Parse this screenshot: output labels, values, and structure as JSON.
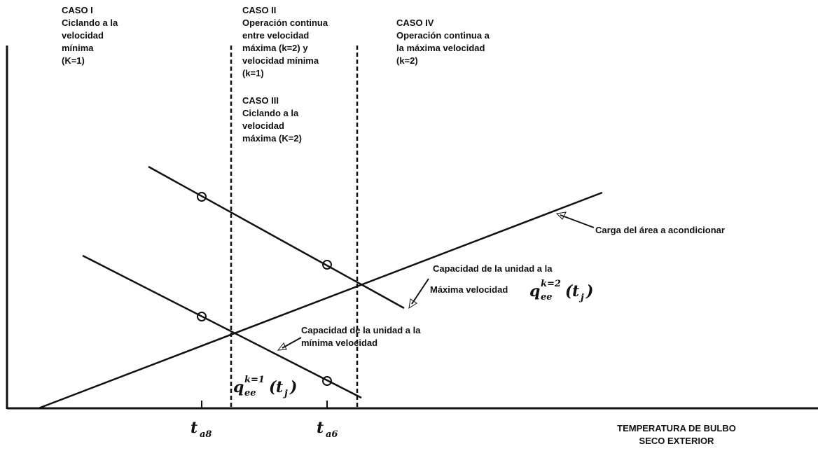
{
  "cases": [
    {
      "title": "CASO I",
      "lines": [
        "Ciclando a la",
        "velocidad",
        "mínima",
        "(K=1)"
      ]
    },
    {
      "title": "CASO II",
      "lines": [
        "Operación continua",
        "entre velocidad",
        "máxima (k=2) y",
        "velocidad mínima",
        "(k=1)"
      ]
    },
    {
      "title": "CASO III",
      "lines": [
        "Ciclando a la",
        "velocidad",
        "máxima (K=2)"
      ]
    },
    {
      "title": "CASO IV",
      "lines": [
        "Operación continua a",
        "la máxima velocidad",
        "(k=2)"
      ]
    }
  ],
  "labels": {
    "load": "Carga del área a acondicionar",
    "max_capacity": [
      "Capacidad de la unidad a la",
      "Máxima velocidad"
    ],
    "min_capacity": [
      "Capacidad de la unidad a la",
      "mínima velocidad"
    ]
  },
  "formulas": {
    "max": {
      "base": "q",
      "sub": "ee",
      "sup": "k=2",
      "open": "(",
      "arg": "t",
      "arg_sub": "j",
      "close": ")"
    },
    "min": {
      "base": "q",
      "sub": "ee",
      "sup": "k=1",
      "open": "(",
      "arg": "t",
      "arg_sub": "j",
      "close": ")"
    }
  },
  "x_axis": {
    "ticks": [
      {
        "base": "t",
        "sub": "a8"
      },
      {
        "base": "t",
        "sub": "a6"
      }
    ],
    "title": [
      "TEMPERATURA DE BULBO",
      "SECO EXTERIOR"
    ]
  }
}
